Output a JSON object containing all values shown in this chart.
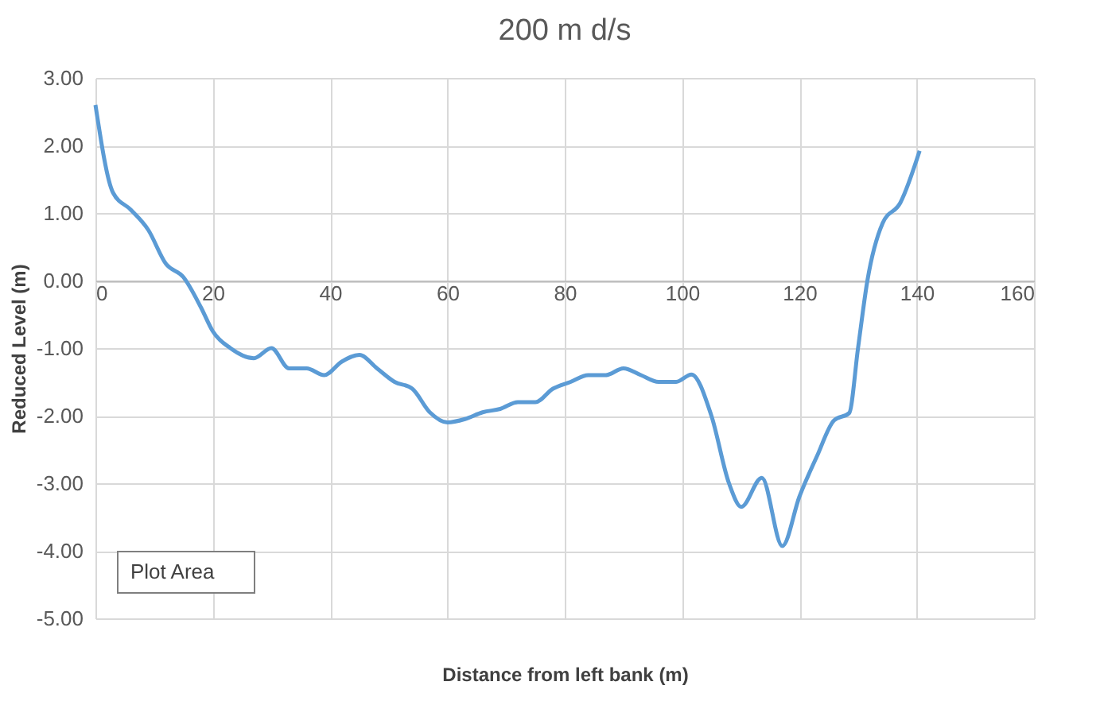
{
  "chart_data": {
    "type": "line",
    "title": "200 m d/s",
    "xlabel": "Distance from left bank (m)",
    "ylabel": "Reduced Level (m)",
    "x": [
      0,
      3,
      6,
      9,
      12,
      15,
      18,
      20,
      23,
      27,
      30,
      33,
      36,
      39,
      42,
      45,
      48,
      51,
      54,
      57,
      60,
      63,
      66,
      69,
      72,
      75,
      78,
      81,
      84,
      87,
      90,
      93,
      96,
      99,
      101.6,
      105,
      108,
      110.1,
      113.6,
      117.1,
      120,
      123,
      125.9,
      128.5,
      130,
      131.6,
      134.2,
      137.2,
      140.5
    ],
    "series": [
      {
        "color": "#5b9bd5",
        "values": [
          2.6,
          1.3,
          1.05,
          0.75,
          0.25,
          0.05,
          -0.4,
          -0.75,
          -1.0,
          -1.15,
          -1.0,
          -1.3,
          -1.3,
          -1.4,
          -1.2,
          -1.1,
          -1.3,
          -1.5,
          -1.6,
          -1.95,
          -2.1,
          -2.05,
          -1.95,
          -1.9,
          -1.8,
          -1.8,
          -1.6,
          -1.5,
          -1.4,
          -1.4,
          -1.3,
          -1.4,
          -1.5,
          -1.5,
          -1.39,
          -2.0,
          -3.0,
          -3.35,
          -2.92,
          -3.93,
          -3.2,
          -2.6,
          -2.07,
          -1.96,
          -1.0,
          0.0,
          0.85,
          1.15,
          1.92
        ]
      }
    ],
    "xlim": [
      0,
      160
    ],
    "xticks": [
      0,
      20,
      40,
      60,
      80,
      100,
      120,
      140,
      160
    ],
    "ylim": [
      -5,
      3
    ],
    "yticks": [
      {
        "value": -5,
        "label": "-5.00"
      },
      {
        "value": -4,
        "label": "-4.00"
      },
      {
        "value": -3,
        "label": "-3.00"
      },
      {
        "value": -2,
        "label": "-2.00"
      },
      {
        "value": -1,
        "label": "-1.00"
      },
      {
        "value": 0,
        "label": "0.00"
      },
      {
        "value": 1,
        "label": "1.00"
      },
      {
        "value": 2,
        "label": "2.00"
      },
      {
        "value": 3,
        "label": "3.00"
      }
    ],
    "grid": true,
    "marker": "none",
    "line_style": "solid",
    "annotations": [
      "Plot Area"
    ]
  }
}
